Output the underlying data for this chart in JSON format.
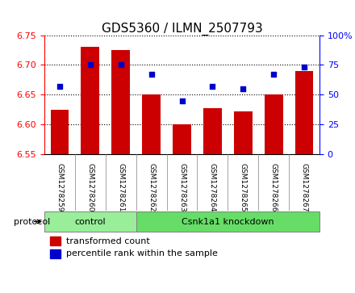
{
  "title": "GDS5360 / ILMN_2507793",
  "samples": [
    "GSM1278259",
    "GSM1278260",
    "GSM1278261",
    "GSM1278262",
    "GSM1278263",
    "GSM1278264",
    "GSM1278265",
    "GSM1278266",
    "GSM1278267"
  ],
  "bar_heights": [
    6.625,
    6.73,
    6.725,
    6.65,
    6.6,
    6.628,
    6.622,
    6.65,
    6.69
  ],
  "percentile_ranks": [
    57,
    75,
    75,
    67,
    45,
    57,
    55,
    67,
    73
  ],
  "bar_color": "#cc0000",
  "dot_color": "#0000cc",
  "ylim_left": [
    6.55,
    6.75
  ],
  "ylim_right": [
    0,
    100
  ],
  "yticks_left": [
    6.55,
    6.6,
    6.65,
    6.7,
    6.75
  ],
  "yticks_right": [
    0,
    25,
    50,
    75,
    100
  ],
  "ytick_labels_right": [
    "0",
    "25",
    "50",
    "75",
    "100%"
  ],
  "groups": [
    {
      "label": "control",
      "indices": [
        0,
        1,
        2
      ],
      "color": "#99ee99"
    },
    {
      "label": "Csnk1a1 knockdown",
      "indices": [
        3,
        4,
        5,
        6,
        7,
        8
      ],
      "color": "#66dd66"
    }
  ],
  "protocol_label": "protocol",
  "legend_bar_label": "transformed count",
  "legend_dot_label": "percentile rank within the sample",
  "bar_width": 0.6,
  "background_color": "#f0f0f0",
  "plot_bg": "#ffffff"
}
